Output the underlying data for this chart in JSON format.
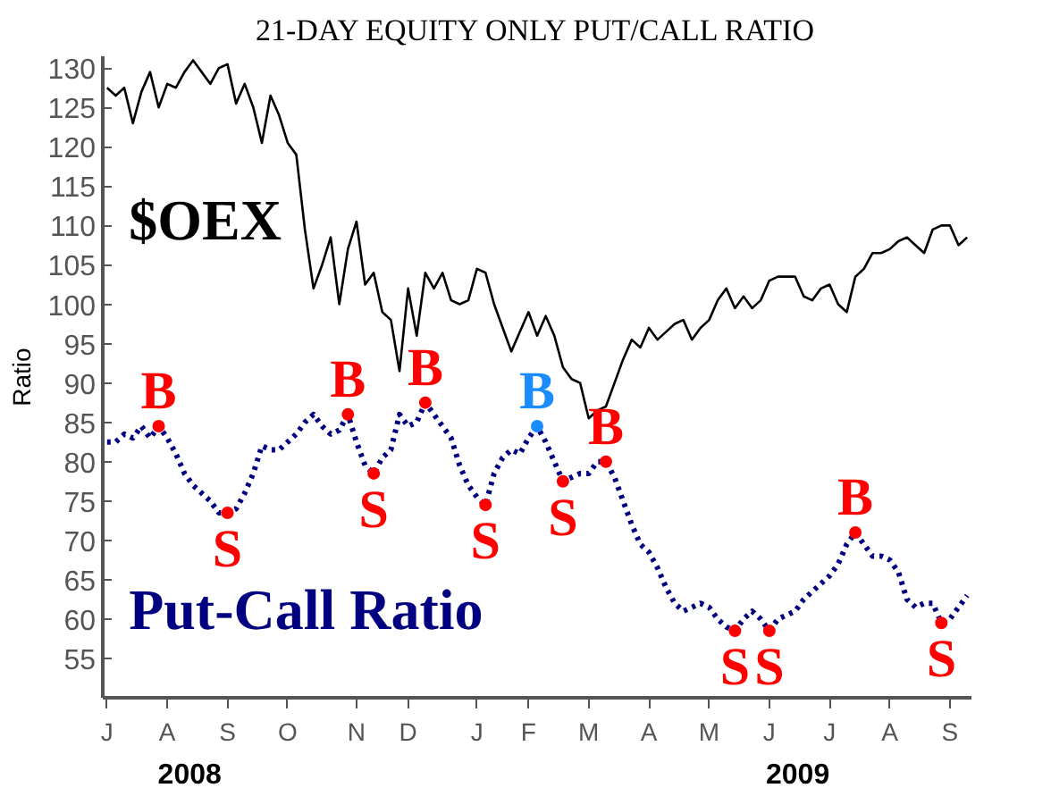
{
  "chart_data": {
    "type": "line",
    "title": "21-DAY EQUITY ONLY PUT/CALL RATIO",
    "ylabel": "Ratio",
    "categories": [
      "J",
      null,
      null,
      null,
      null,
      null,
      null,
      "A",
      null,
      null,
      null,
      null,
      null,
      null,
      "S",
      null,
      null,
      null,
      null,
      null,
      null,
      "O",
      null,
      null,
      null,
      null,
      null,
      null,
      null,
      "N",
      null,
      null,
      null,
      null,
      null,
      "D",
      null,
      null,
      null,
      null,
      null,
      null,
      null,
      "J",
      null,
      null,
      null,
      null,
      null,
      "F",
      null,
      null,
      null,
      null,
      null,
      null,
      "M",
      null,
      null,
      null,
      null,
      null,
      null,
      "A",
      null,
      null,
      null,
      null,
      null,
      null,
      "M",
      null,
      null,
      null,
      null,
      null,
      null,
      "J",
      null,
      null,
      null,
      null,
      null,
      null,
      "J",
      null,
      null,
      null,
      null,
      null,
      null,
      "A",
      null,
      null,
      null,
      null,
      null,
      null,
      "S",
      null,
      null
    ],
    "ylim": [
      50,
      131.5
    ],
    "yticks": [
      55,
      60,
      65,
      70,
      75,
      80,
      85,
      90,
      95,
      100,
      105,
      110,
      115,
      120,
      125,
      130
    ],
    "series": [
      {
        "name": "$OEX",
        "color": "#000000",
        "line_style": "solid",
        "values": [
          127.5,
          126.5,
          127.5,
          123,
          127,
          129.5,
          125,
          128,
          127.5,
          129.5,
          131,
          129.5,
          128,
          130,
          130.5,
          125.5,
          128,
          125,
          120.5,
          126.5,
          124,
          120.5,
          119,
          109.5,
          102,
          105,
          108.5,
          100,
          107,
          110.5,
          102.5,
          104,
          99,
          98,
          91.5,
          102,
          96,
          104,
          102,
          104,
          100.5,
          100,
          100.5,
          104.5,
          104,
          100,
          97,
          94,
          96.5,
          99,
          96,
          98.5,
          96,
          92,
          90.5,
          90,
          85.5,
          86.5,
          87,
          90,
          93,
          95.5,
          94.5,
          97,
          95.5,
          96.5,
          97.5,
          98,
          95.5,
          97,
          98,
          100.5,
          102,
          99.5,
          101,
          99.5,
          100.5,
          103,
          103.5,
          103.5,
          103.5,
          101,
          100.5,
          102,
          102.5,
          100,
          99,
          103.5,
          104.5,
          106.5,
          106.5,
          107,
          108,
          108.5,
          107.5,
          106.5,
          109.5,
          110,
          110,
          107.5,
          108.5
        ]
      },
      {
        "name": "Put-Call Ratio",
        "color": "#000080",
        "line_style": "dotted",
        "values": [
          82.5,
          82.5,
          83.5,
          83,
          84.5,
          83,
          84.5,
          83,
          81,
          78.5,
          77,
          76,
          75,
          73.5,
          73.5,
          74,
          76,
          78.5,
          82,
          81.5,
          81.5,
          82.5,
          83.5,
          85,
          86,
          84.5,
          83.5,
          84,
          86,
          82.5,
          79.5,
          78.5,
          80.5,
          81.5,
          86,
          84.5,
          85,
          87.5,
          86,
          84.5,
          83,
          79.5,
          77,
          75.5,
          74.5,
          78.5,
          80.5,
          81.5,
          81,
          83,
          84.5,
          82.5,
          80,
          77.5,
          78,
          78.5,
          78.5,
          80,
          80,
          78,
          75,
          72,
          69.5,
          68.5,
          66.5,
          64,
          62,
          61,
          61.5,
          62,
          61.5,
          60,
          59,
          58.5,
          60,
          61,
          60,
          58.5,
          60,
          60.5,
          61,
          62.5,
          63.5,
          64.5,
          65.5,
          67,
          69.5,
          71,
          69.5,
          68,
          68,
          67.5,
          66,
          62.5,
          61.5,
          62,
          62,
          59.5,
          60,
          61.5,
          63
        ]
      },
      {
        "type": "scatter",
        "marker": "circle",
        "values": [
          null,
          null,
          null,
          null,
          null,
          null,
          84.5,
          null,
          null,
          null,
          null,
          null,
          null,
          null,
          73.5,
          null,
          null,
          null,
          null,
          null,
          null,
          null,
          null,
          null,
          null,
          null,
          null,
          null,
          86,
          null,
          null,
          78.5,
          null,
          null,
          null,
          null,
          null,
          87.5,
          null,
          null,
          null,
          null,
          null,
          null,
          74.5,
          null,
          null,
          null,
          null,
          null,
          84.5,
          null,
          null,
          77.5,
          null,
          null,
          null,
          null,
          80,
          null,
          null,
          null,
          null,
          null,
          null,
          null,
          null,
          null,
          null,
          null,
          null,
          null,
          null,
          58.5,
          null,
          null,
          null,
          58.5,
          null,
          null,
          null,
          null,
          null,
          null,
          null,
          null,
          null,
          71,
          null,
          null,
          null,
          null,
          null,
          null,
          null,
          null,
          null,
          59.5,
          null,
          null,
          null
        ],
        "value_labels": [
          null,
          null,
          null,
          null,
          null,
          null,
          "B",
          null,
          null,
          null,
          null,
          null,
          null,
          null,
          "S",
          null,
          null,
          null,
          null,
          null,
          null,
          null,
          null,
          null,
          null,
          null,
          null,
          null,
          "B",
          null,
          null,
          "S",
          null,
          null,
          null,
          null,
          null,
          "B",
          null,
          null,
          null,
          null,
          null,
          null,
          "S",
          null,
          null,
          null,
          null,
          null,
          "B",
          null,
          null,
          "S",
          null,
          null,
          null,
          null,
          "B",
          null,
          null,
          null,
          null,
          null,
          null,
          null,
          null,
          null,
          null,
          null,
          null,
          null,
          null,
          "S",
          null,
          null,
          null,
          "S",
          null,
          null,
          null,
          null,
          null,
          null,
          null,
          null,
          null,
          "B",
          null,
          null,
          null,
          null,
          null,
          null,
          null,
          null,
          null,
          "S",
          null,
          null,
          null
        ],
        "colors": [
          null,
          null,
          null,
          null,
          null,
          null,
          "#ff0000",
          null,
          null,
          null,
          null,
          null,
          null,
          null,
          "#ff0000",
          null,
          null,
          null,
          null,
          null,
          null,
          null,
          null,
          null,
          null,
          null,
          null,
          null,
          "#ff0000",
          null,
          null,
          "#ff0000",
          null,
          null,
          null,
          null,
          null,
          "#ff0000",
          null,
          null,
          null,
          null,
          null,
          null,
          "#ff0000",
          null,
          null,
          null,
          null,
          null,
          "#1a8cff",
          null,
          null,
          "#ff0000",
          null,
          null,
          null,
          null,
          "#ff0000",
          null,
          null,
          null,
          null,
          null,
          null,
          null,
          null,
          null,
          null,
          null,
          null,
          null,
          null,
          "#ff0000",
          null,
          null,
          null,
          "#ff0000",
          null,
          null,
          null,
          null,
          null,
          null,
          null,
          null,
          null,
          "#ff0000",
          null,
          null,
          null,
          null,
          null,
          null,
          null,
          null,
          null,
          "#ff0000",
          null,
          null,
          null
        ]
      }
    ],
    "annotations": [
      "2008",
      "2009"
    ]
  }
}
